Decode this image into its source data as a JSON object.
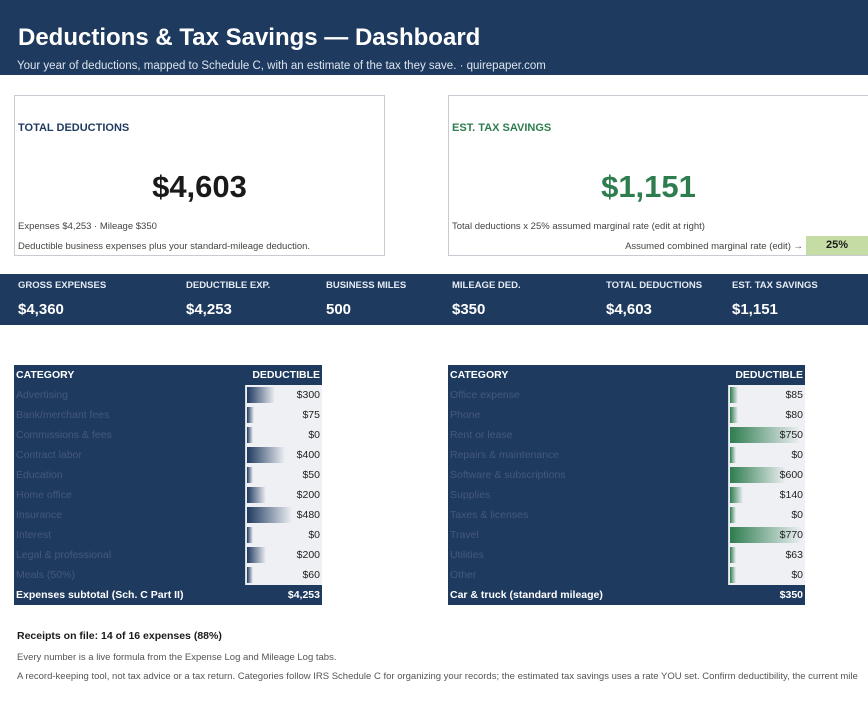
{
  "header": {
    "title": "Deductions & Tax Savings — Dashboard",
    "subtitle": "Your year of deductions, mapped to Schedule C, with an estimate of the tax they save. · quirepaper.com"
  },
  "total_card": {
    "title": "TOTAL DEDUCTIONS",
    "value": "$4,603",
    "breakdown": "Expenses $4,253  ·  Mileage $350",
    "note": "Deductible business expenses plus your standard-mileage deduction."
  },
  "savings_card": {
    "title": "EST. TAX SAVINGS",
    "value": "$1,151",
    "formula": "Total deductions x 25% assumed marginal rate (edit at right)",
    "rate_label": "Assumed combined marginal rate (edit) →",
    "rate_value": "25%"
  },
  "kpis": [
    {
      "label": "GROSS EXPENSES",
      "value": "$4,360"
    },
    {
      "label": "DEDUCTIBLE EXP.",
      "value": "$4,253"
    },
    {
      "label": "BUSINESS MILES",
      "value": "500"
    },
    {
      "label": "MILEAGE DED.",
      "value": "$350"
    },
    {
      "label": "TOTAL DEDUCTIONS",
      "value": "$4,603"
    },
    {
      "label": "EST. TAX SAVINGS",
      "value": "$1,151"
    }
  ],
  "left_table": {
    "header_category": "CATEGORY",
    "header_deductible": "DEDUCTIBLE",
    "bar_color": "#1f3a5f",
    "bar_max": 800,
    "rows": [
      {
        "category": "Advertising",
        "amount": "$300",
        "value": 300
      },
      {
        "category": "Bank/merchant fees",
        "amount": "$75",
        "value": 75
      },
      {
        "category": "Commissions & fees",
        "amount": "$0",
        "value": 0
      },
      {
        "category": "Contract labor",
        "amount": "$400",
        "value": 400
      },
      {
        "category": "Education",
        "amount": "$50",
        "value": 50
      },
      {
        "category": "Home office",
        "amount": "$200",
        "value": 200
      },
      {
        "category": "Insurance",
        "amount": "$480",
        "value": 480
      },
      {
        "category": "Interest",
        "amount": "$0",
        "value": 0
      },
      {
        "category": "Legal & professional",
        "amount": "$200",
        "value": 200
      },
      {
        "category": "Meals (50%)",
        "amount": "$60",
        "value": 60
      }
    ],
    "footer_label": "Expenses subtotal (Sch. C Part II)",
    "footer_value": "$4,253"
  },
  "right_table": {
    "header_category": "CATEGORY",
    "header_deductible": "DEDUCTIBLE",
    "bar_color": "#2e7d4f",
    "bar_max": 800,
    "rows": [
      {
        "category": "Office expense",
        "amount": "$85",
        "value": 85
      },
      {
        "category": "Phone",
        "amount": "$80",
        "value": 80
      },
      {
        "category": "Rent or lease",
        "amount": "$750",
        "value": 750
      },
      {
        "category": "Repairs & maintenance",
        "amount": "$0",
        "value": 0
      },
      {
        "category": "Software & subscriptions",
        "amount": "$600",
        "value": 600
      },
      {
        "category": "Supplies",
        "amount": "$140",
        "value": 140
      },
      {
        "category": "Taxes & licenses",
        "amount": "$0",
        "value": 0
      },
      {
        "category": "Travel",
        "amount": "$770",
        "value": 770
      },
      {
        "category": "Utilities",
        "amount": "$63",
        "value": 63
      },
      {
        "category": "Other",
        "amount": "$0",
        "value": 0
      }
    ],
    "footer_label": "Car & truck (standard mileage)",
    "footer_value": "$350"
  },
  "footer": {
    "receipts": "Receipts on file: 14 of 16 expenses (88%)",
    "live_note": "Every number is a live formula from the Expense Log and Mileage Log tabs.",
    "disclaimer": "A record-keeping tool, not tax advice or a tax return. Categories follow IRS Schedule C for organizing your records; the estimated tax savings uses a rate YOU set. Confirm deductibility, the current mile"
  }
}
